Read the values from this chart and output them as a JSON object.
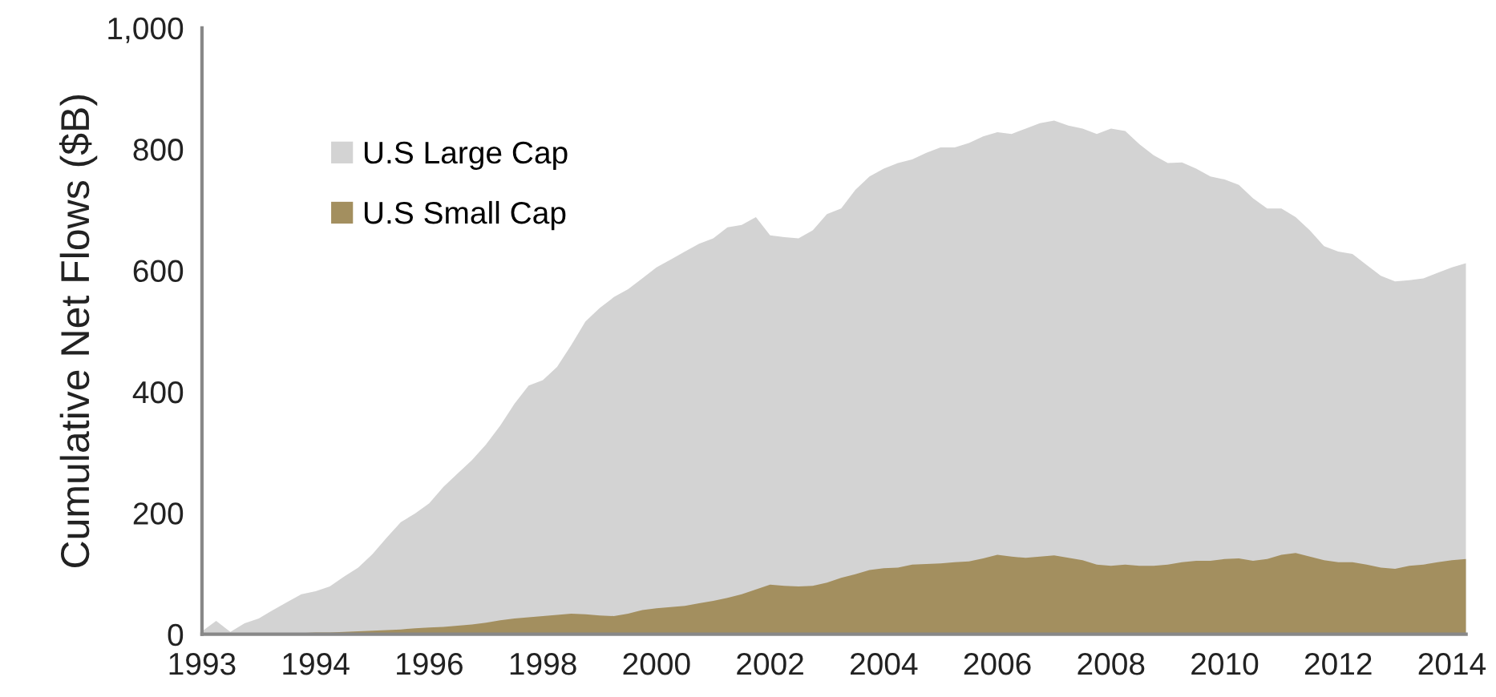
{
  "chart_data": {
    "type": "area",
    "ylabel": "Cumulative Net Flows ($B)",
    "categories": [
      "1993",
      null,
      null,
      null,
      null,
      null,
      null,
      null,
      "1994",
      null,
      null,
      null,
      null,
      null,
      null,
      null,
      "1996",
      null,
      null,
      null,
      null,
      null,
      null,
      null,
      "1998",
      null,
      null,
      null,
      null,
      null,
      null,
      null,
      "2000",
      null,
      null,
      null,
      null,
      null,
      null,
      null,
      "2002",
      null,
      null,
      null,
      null,
      null,
      null,
      null,
      "2004",
      null,
      null,
      null,
      null,
      null,
      null,
      null,
      "2006",
      null,
      null,
      null,
      null,
      null,
      null,
      null,
      "2008",
      null,
      null,
      null,
      null,
      null,
      null,
      null,
      "2010",
      null,
      null,
      null,
      null,
      null,
      null,
      null,
      "2012",
      null,
      null,
      null,
      null,
      null,
      null,
      null,
      "2014",
      null
    ],
    "series": [
      {
        "name": "U.S Large Cap",
        "color": "#d3d3d3",
        "values": [
          5,
          22,
          4,
          18,
          26,
          40,
          53,
          66,
          71,
          79,
          95,
          110,
          132,
          159,
          185,
          199,
          216,
          243,
          265,
          287,
          313,
          344,
          380,
          410,
          419,
          441,
          477,
          516,
          538,
          556,
          569,
          587,
          605,
          618,
          631,
          644,
          653,
          671,
          675,
          688,
          658,
          655,
          653,
          666,
          693,
          702,
          733,
          755,
          768,
          777,
          783,
          794,
          803,
          803,
          810,
          821,
          828,
          825,
          834,
          843,
          847,
          839,
          834,
          825,
          834,
          830,
          808,
          790,
          777,
          778,
          768,
          755,
          750,
          741,
          719,
          702,
          702,
          688,
          666,
          640,
          631,
          627,
          609,
          591,
          582,
          584,
          587,
          596,
          605,
          612
        ]
      },
      {
        "name": "U.S Small Cap",
        "color": "#a38f5f",
        "values": [
          0,
          0,
          0,
          1,
          1,
          2,
          2,
          2,
          3,
          3,
          4,
          5,
          6,
          7,
          8,
          10,
          11,
          12,
          14,
          16,
          19,
          23,
          26,
          28,
          30,
          32,
          34,
          33,
          31,
          30,
          34,
          40,
          43,
          45,
          47,
          51,
          55,
          60,
          66,
          74,
          82,
          80,
          79,
          80,
          85,
          93,
          99,
          106,
          109,
          110,
          115,
          116,
          117,
          119,
          120,
          125,
          131,
          128,
          126,
          128,
          130,
          126,
          122,
          115,
          113,
          115,
          113,
          113,
          115,
          119,
          121,
          121,
          124,
          125,
          121,
          124,
          131,
          134,
          128,
          122,
          119,
          119,
          115,
          110,
          108,
          113,
          115,
          119,
          122,
          124
        ]
      }
    ],
    "ylim": [
      0,
      1000
    ],
    "yticks": [
      0,
      200,
      400,
      600,
      800,
      {
        "value": 1000,
        "label": "1,000"
      }
    ],
    "grid": false,
    "legend": "top left"
  }
}
